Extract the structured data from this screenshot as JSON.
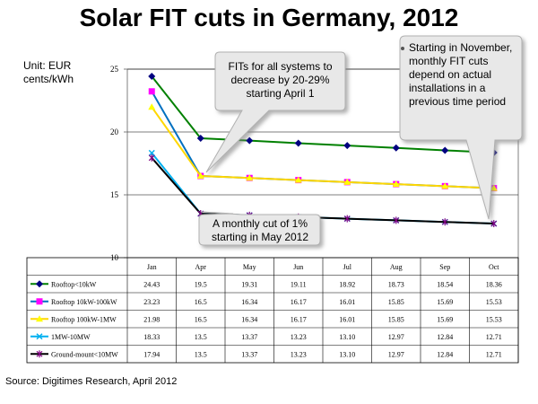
{
  "title": "Solar FIT cuts in Germany, 2012",
  "unit_label": "Unit: EUR cents/kWh",
  "source": "Source: Digitimes Research, April 2012",
  "callouts": {
    "april": "FITs for all systems to decrease by 20-29% starting April 1",
    "november": "Starting in November, monthly FIT cuts depend on actual installations in a previous time period",
    "may": "A monthly cut of 1% starting in May 2012"
  },
  "chart_data": {
    "type": "line",
    "title": "Solar FIT cuts in Germany, 2012",
    "ylabel": "Unit: EUR cents/kWh",
    "xlabel": "",
    "ylim": [
      10,
      25
    ],
    "yticks": [
      10,
      15,
      20,
      25
    ],
    "grid": "horizontal",
    "categories": [
      "Jan",
      "Apr",
      "May",
      "Jun",
      "Jul",
      "Aug",
      "Sep",
      "Oct"
    ],
    "series": [
      {
        "name": "Rooftop<10kW",
        "color": "#008000",
        "marker": "diamond",
        "marker_color": "#000080",
        "values": [
          24.43,
          19.5,
          19.31,
          19.11,
          18.92,
          18.73,
          18.54,
          18.36
        ],
        "labels": [
          "24.43",
          "19.5",
          "19.31",
          "19.11",
          "18.92",
          "18.73",
          "18.54",
          "18.36"
        ]
      },
      {
        "name": "Rooftop 10kW-100kW",
        "color": "#0070C0",
        "marker": "square",
        "marker_color": "#FF00FF",
        "values": [
          23.23,
          16.5,
          16.34,
          16.17,
          16.01,
          15.85,
          15.69,
          15.53
        ],
        "labels": [
          "23.23",
          "16.5",
          "16.34",
          "16.17",
          "16.01",
          "15.85",
          "15.69",
          "15.53"
        ]
      },
      {
        "name": "Rooftop 100kW-1MW",
        "color": "#FFD700",
        "marker": "triangle",
        "marker_color": "#FFFF00",
        "values": [
          21.98,
          16.5,
          16.34,
          16.17,
          16.01,
          15.85,
          15.69,
          15.53
        ],
        "labels": [
          "21.98",
          "16.5",
          "16.34",
          "16.17",
          "16.01",
          "15.85",
          "15.69",
          "15.53"
        ]
      },
      {
        "name": "1MW-10MW",
        "color": "#00B0F0",
        "marker": "x",
        "marker_color": "#00B0F0",
        "values": [
          18.33,
          13.5,
          13.37,
          13.23,
          13.1,
          12.97,
          12.84,
          12.71
        ],
        "labels": [
          "18.33",
          "13.5",
          "13.37",
          "13.23",
          "13.10",
          "12.97",
          "12.84",
          "12.71"
        ]
      },
      {
        "name": "Ground-mount<10MW",
        "color": "#000000",
        "marker": "star",
        "marker_color": "#800080",
        "values": [
          17.94,
          13.5,
          13.37,
          13.23,
          13.1,
          12.97,
          12.84,
          12.71
        ],
        "labels": [
          "17.94",
          "13.5",
          "13.37",
          "13.23",
          "13.10",
          "12.97",
          "12.84",
          "12.71"
        ]
      }
    ]
  }
}
